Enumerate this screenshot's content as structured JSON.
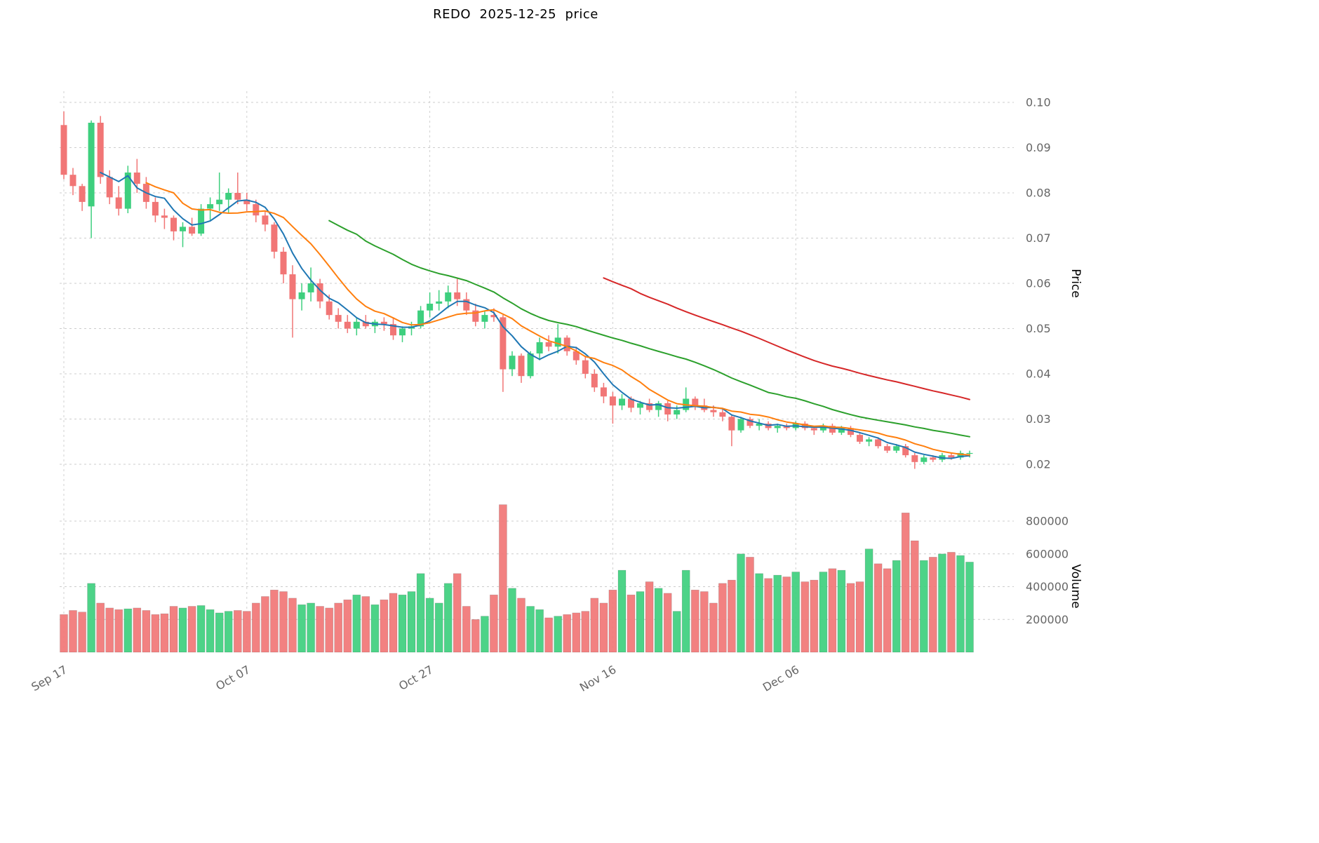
{
  "chart_data": {
    "type": "candlestick",
    "title": "REDO  2025-12-25  price",
    "ylabel_price": "Price",
    "ylabel_volume": "Volume",
    "colors": {
      "up": "#3ecf7e",
      "down": "#f17676",
      "grid": "#cccccc",
      "tick_label": "#666666",
      "axis_label": "#000000"
    },
    "price_ticks": [
      0.02,
      0.03,
      0.04,
      0.05,
      0.06,
      0.07,
      0.08,
      0.09,
      0.1
    ],
    "volume_ticks": [
      200000,
      400000,
      600000,
      800000
    ],
    "x_ticks": [
      {
        "label": "Sep 17",
        "index": 0
      },
      {
        "label": "Oct 07",
        "index": 20
      },
      {
        "label": "Oct 27",
        "index": 40
      },
      {
        "label": "Nov 16",
        "index": 60
      },
      {
        "label": "Dec 06",
        "index": 80
      }
    ],
    "moving_averages": [
      {
        "name": "ma5",
        "window": 5,
        "color": "#1f77b4",
        "width": 2
      },
      {
        "name": "ma10",
        "window": 10,
        "color": "#ff7f0e",
        "width": 2
      },
      {
        "name": "ma30",
        "window": 30,
        "color": "#2ca02c",
        "width": 2
      },
      {
        "name": "ma60",
        "window": 60,
        "color": "#d62728",
        "width": 2
      }
    ],
    "columns": [
      "date",
      "open",
      "high",
      "low",
      "close",
      "volume"
    ],
    "ohlcv": [
      [
        "2025-09-17",
        0.095,
        0.098,
        0.083,
        0.084,
        230000
      ],
      [
        "2025-09-18",
        0.084,
        0.0855,
        0.0795,
        0.0815,
        255000
      ],
      [
        "2025-09-19",
        0.0815,
        0.082,
        0.076,
        0.078,
        245000
      ],
      [
        "2025-09-20",
        0.077,
        0.096,
        0.07,
        0.0955,
        420000
      ],
      [
        "2025-09-21",
        0.0955,
        0.097,
        0.082,
        0.0835,
        300000
      ],
      [
        "2025-09-22",
        0.0835,
        0.085,
        0.0775,
        0.079,
        270000
      ],
      [
        "2025-09-23",
        0.079,
        0.0815,
        0.075,
        0.0765,
        260000
      ],
      [
        "2025-09-24",
        0.0765,
        0.086,
        0.0755,
        0.0845,
        265000
      ],
      [
        "2025-09-25",
        0.0845,
        0.0875,
        0.08,
        0.082,
        270000
      ],
      [
        "2025-09-26",
        0.082,
        0.0835,
        0.0765,
        0.078,
        255000
      ],
      [
        "2025-09-27",
        0.078,
        0.079,
        0.0735,
        0.075,
        230000
      ],
      [
        "2025-09-28",
        0.075,
        0.0765,
        0.072,
        0.0745,
        235000
      ],
      [
        "2025-09-29",
        0.0745,
        0.075,
        0.0695,
        0.0715,
        280000
      ],
      [
        "2025-09-30",
        0.0715,
        0.0735,
        0.068,
        0.0725,
        270000
      ],
      [
        "2025-10-01",
        0.0725,
        0.0745,
        0.0705,
        0.071,
        280000
      ],
      [
        "2025-10-02",
        0.071,
        0.0775,
        0.0705,
        0.0765,
        285000
      ],
      [
        "2025-10-03",
        0.0765,
        0.079,
        0.074,
        0.0775,
        260000
      ],
      [
        "2025-10-04",
        0.0775,
        0.0845,
        0.076,
        0.0785,
        240000
      ],
      [
        "2025-10-05",
        0.0785,
        0.081,
        0.0755,
        0.08,
        250000
      ],
      [
        "2025-10-06",
        0.08,
        0.0845,
        0.0775,
        0.0785,
        255000
      ],
      [
        "2025-10-07",
        0.0785,
        0.08,
        0.076,
        0.0775,
        250000
      ],
      [
        "2025-10-08",
        0.0775,
        0.0785,
        0.0735,
        0.075,
        300000
      ],
      [
        "2025-10-09",
        0.075,
        0.076,
        0.0715,
        0.073,
        340000
      ],
      [
        "2025-10-10",
        0.073,
        0.0735,
        0.0655,
        0.067,
        380000
      ],
      [
        "2025-10-11",
        0.067,
        0.068,
        0.06,
        0.062,
        370000
      ],
      [
        "2025-10-12",
        0.062,
        0.064,
        0.048,
        0.0565,
        330000
      ],
      [
        "2025-10-13",
        0.0565,
        0.06,
        0.054,
        0.058,
        290000
      ],
      [
        "2025-10-14",
        0.058,
        0.0635,
        0.056,
        0.06,
        300000
      ],
      [
        "2025-10-15",
        0.06,
        0.061,
        0.0545,
        0.056,
        280000
      ],
      [
        "2025-10-16",
        0.056,
        0.0575,
        0.052,
        0.053,
        270000
      ],
      [
        "2025-10-17",
        0.053,
        0.0545,
        0.05,
        0.0515,
        300000
      ],
      [
        "2025-10-18",
        0.0515,
        0.053,
        0.049,
        0.05,
        320000
      ],
      [
        "2025-10-19",
        0.05,
        0.0525,
        0.0485,
        0.0515,
        350000
      ],
      [
        "2025-10-20",
        0.0515,
        0.053,
        0.05,
        0.0505,
        340000
      ],
      [
        "2025-10-21",
        0.0505,
        0.052,
        0.049,
        0.0515,
        290000
      ],
      [
        "2025-10-22",
        0.0515,
        0.0525,
        0.0495,
        0.051,
        320000
      ],
      [
        "2025-10-23",
        0.051,
        0.0525,
        0.0475,
        0.0485,
        360000
      ],
      [
        "2025-10-24",
        0.0485,
        0.0505,
        0.047,
        0.05,
        350000
      ],
      [
        "2025-10-25",
        0.05,
        0.0515,
        0.0485,
        0.0505,
        370000
      ],
      [
        "2025-10-26",
        0.0505,
        0.055,
        0.05,
        0.054,
        480000
      ],
      [
        "2025-10-27",
        0.054,
        0.058,
        0.0525,
        0.0555,
        330000
      ],
      [
        "2025-10-28",
        0.0555,
        0.0585,
        0.054,
        0.056,
        300000
      ],
      [
        "2025-10-29",
        0.056,
        0.0595,
        0.0545,
        0.058,
        420000
      ],
      [
        "2025-10-30",
        0.058,
        0.061,
        0.055,
        0.0565,
        480000
      ],
      [
        "2025-10-31",
        0.0565,
        0.058,
        0.053,
        0.054,
        280000
      ],
      [
        "2025-11-01",
        0.054,
        0.0555,
        0.0505,
        0.0515,
        200000
      ],
      [
        "2025-11-02",
        0.0515,
        0.054,
        0.05,
        0.053,
        220000
      ],
      [
        "2025-11-03",
        0.053,
        0.0545,
        0.0515,
        0.0525,
        350000
      ],
      [
        "2025-11-04",
        0.0525,
        0.053,
        0.036,
        0.041,
        900000
      ],
      [
        "2025-11-05",
        0.041,
        0.045,
        0.0395,
        0.044,
        390000
      ],
      [
        "2025-11-06",
        0.044,
        0.0445,
        0.038,
        0.0395,
        330000
      ],
      [
        "2025-11-07",
        0.0395,
        0.045,
        0.039,
        0.0445,
        280000
      ],
      [
        "2025-11-08",
        0.0445,
        0.048,
        0.043,
        0.047,
        260000
      ],
      [
        "2025-11-09",
        0.047,
        0.0485,
        0.045,
        0.046,
        210000
      ],
      [
        "2025-11-10",
        0.046,
        0.051,
        0.0445,
        0.048,
        220000
      ],
      [
        "2025-11-11",
        0.048,
        0.0485,
        0.044,
        0.045,
        230000
      ],
      [
        "2025-11-12",
        0.045,
        0.046,
        0.042,
        0.043,
        240000
      ],
      [
        "2025-11-13",
        0.043,
        0.044,
        0.039,
        0.04,
        250000
      ],
      [
        "2025-11-14",
        0.04,
        0.041,
        0.036,
        0.037,
        330000
      ],
      [
        "2025-11-15",
        0.037,
        0.038,
        0.0335,
        0.035,
        300000
      ],
      [
        "2025-11-16",
        0.035,
        0.036,
        0.029,
        0.033,
        380000
      ],
      [
        "2025-11-17",
        0.033,
        0.0355,
        0.032,
        0.0345,
        500000
      ],
      [
        "2025-11-18",
        0.0345,
        0.035,
        0.0315,
        0.0325,
        350000
      ],
      [
        "2025-11-19",
        0.0325,
        0.034,
        0.031,
        0.0335,
        370000
      ],
      [
        "2025-11-20",
        0.0335,
        0.0345,
        0.0315,
        0.032,
        430000
      ],
      [
        "2025-11-21",
        0.032,
        0.034,
        0.0305,
        0.0335,
        390000
      ],
      [
        "2025-11-22",
        0.0335,
        0.034,
        0.0295,
        0.031,
        360000
      ],
      [
        "2025-11-23",
        0.031,
        0.033,
        0.03,
        0.032,
        250000
      ],
      [
        "2025-11-24",
        0.032,
        0.037,
        0.0315,
        0.0345,
        500000
      ],
      [
        "2025-11-25",
        0.0345,
        0.035,
        0.032,
        0.033,
        380000
      ],
      [
        "2025-11-26",
        0.033,
        0.0345,
        0.0315,
        0.032,
        370000
      ],
      [
        "2025-11-27",
        0.032,
        0.033,
        0.0305,
        0.0315,
        300000
      ],
      [
        "2025-11-28",
        0.0315,
        0.0325,
        0.0295,
        0.0305,
        420000
      ],
      [
        "2025-11-29",
        0.0305,
        0.031,
        0.024,
        0.0275,
        440000
      ],
      [
        "2025-11-30",
        0.0275,
        0.0305,
        0.027,
        0.03,
        600000
      ],
      [
        "2025-12-01",
        0.03,
        0.0305,
        0.028,
        0.0285,
        580000
      ],
      [
        "2025-12-02",
        0.0285,
        0.03,
        0.0275,
        0.029,
        480000
      ],
      [
        "2025-12-03",
        0.029,
        0.0295,
        0.0275,
        0.028,
        450000
      ],
      [
        "2025-12-04",
        0.028,
        0.029,
        0.027,
        0.0285,
        470000
      ],
      [
        "2025-12-05",
        0.0285,
        0.029,
        0.0275,
        0.028,
        460000
      ],
      [
        "2025-12-06",
        0.028,
        0.0295,
        0.0275,
        0.029,
        490000
      ],
      [
        "2025-12-07",
        0.029,
        0.0295,
        0.0275,
        0.028,
        430000
      ],
      [
        "2025-12-08",
        0.028,
        0.0285,
        0.0265,
        0.0275,
        440000
      ],
      [
        "2025-12-09",
        0.0275,
        0.029,
        0.027,
        0.0285,
        490000
      ],
      [
        "2025-12-10",
        0.0285,
        0.029,
        0.0265,
        0.027,
        510000
      ],
      [
        "2025-12-11",
        0.027,
        0.0285,
        0.0265,
        0.028,
        500000
      ],
      [
        "2025-12-12",
        0.028,
        0.0285,
        0.026,
        0.0265,
        420000
      ],
      [
        "2025-12-13",
        0.0265,
        0.027,
        0.0245,
        0.025,
        430000
      ],
      [
        "2025-12-14",
        0.025,
        0.026,
        0.024,
        0.0255,
        630000
      ],
      [
        "2025-12-15",
        0.0255,
        0.026,
        0.0235,
        0.024,
        540000
      ],
      [
        "2025-12-16",
        0.024,
        0.0245,
        0.0225,
        0.023,
        510000
      ],
      [
        "2025-12-17",
        0.023,
        0.0245,
        0.0225,
        0.024,
        560000
      ],
      [
        "2025-12-18",
        0.024,
        0.0245,
        0.0215,
        0.022,
        850000
      ],
      [
        "2025-12-19",
        0.022,
        0.0225,
        0.019,
        0.0205,
        680000
      ],
      [
        "2025-12-20",
        0.0205,
        0.022,
        0.02,
        0.0215,
        560000
      ],
      [
        "2025-12-21",
        0.0215,
        0.022,
        0.0205,
        0.021,
        580000
      ],
      [
        "2025-12-22",
        0.021,
        0.0225,
        0.0205,
        0.022,
        600000
      ],
      [
        "2025-12-23",
        0.022,
        0.0225,
        0.021,
        0.0215,
        610000
      ],
      [
        "2025-12-24",
        0.0215,
        0.023,
        0.021,
        0.0225,
        590000
      ],
      [
        "2025-12-25",
        0.0225,
        0.023,
        0.0215,
        0.0225,
        550000
      ]
    ]
  }
}
